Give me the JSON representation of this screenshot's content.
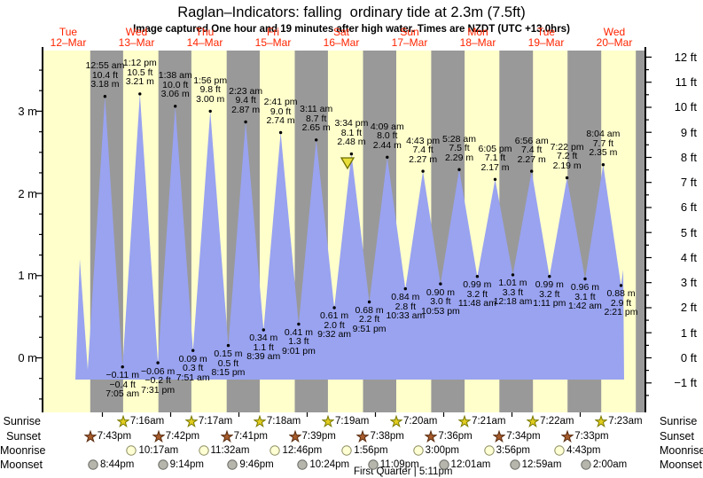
{
  "title": "Raglan–Indicators: falling  ordinary tide at 2.3m (7.5ft)",
  "subtitle": "Image captured One hour and 19 minutes after high water. Times are NZDT (UTC +13.0hrs)",
  "chart_data": {
    "type": "area",
    "title": "Raglan–Indicators: falling  ordinary tide at 2.3m (7.5ft)",
    "x_axis": {
      "days": [
        {
          "dow": "Tue",
          "date": "12–Mar"
        },
        {
          "dow": "Wed",
          "date": "13–Mar"
        },
        {
          "dow": "Thu",
          "date": "14–Mar"
        },
        {
          "dow": "Fri",
          "date": "15–Mar"
        },
        {
          "dow": "Sat",
          "date": "16–Mar"
        },
        {
          "dow": "Sun",
          "date": "17–Mar"
        },
        {
          "dow": "Mon",
          "date": "18–Mar"
        },
        {
          "dow": "Tue",
          "date": "19–Mar"
        },
        {
          "dow": "Wed",
          "date": "20–Mar"
        }
      ]
    },
    "y_axis_left": {
      "unit": "m",
      "ticks": [
        "0 m",
        "1 m",
        "2 m",
        "3 m"
      ],
      "minor_step_m": 0.25
    },
    "y_axis_right": {
      "unit": "ft",
      "ticks": [
        "−1 ft",
        "0 ft",
        "1 ft",
        "2 ft",
        "3 ft",
        "4 ft",
        "5 ft",
        "6 ft",
        "7 ft",
        "8 ft",
        "9 ft",
        "10 ft",
        "11 ft",
        "12 ft"
      ],
      "minor_step_ft": 0.5
    },
    "high_tides": [
      {
        "time": "12:55 am",
        "ft": "10.4 ft",
        "m": "3.18 m",
        "day": 1,
        "hour": 0.9167,
        "height_m": 3.18
      },
      {
        "time": "1:12 pm",
        "ft": "10.5 ft",
        "m": "3.21 m",
        "day": 1,
        "hour": 13.2,
        "height_m": 3.21
      },
      {
        "time": "1:38 am",
        "ft": "10.0 ft",
        "m": "3.06 m",
        "day": 2,
        "hour": 1.6333,
        "height_m": 3.06
      },
      {
        "time": "1:56 pm",
        "ft": "9.8 ft",
        "m": "3.00 m",
        "day": 2,
        "hour": 13.9333,
        "height_m": 3.0
      },
      {
        "time": "2:23 am",
        "ft": "9.4 ft",
        "m": "2.87 m",
        "day": 3,
        "hour": 2.3833,
        "height_m": 2.87
      },
      {
        "time": "2:41 pm",
        "ft": "9.0 ft",
        "m": "2.74 m",
        "day": 3,
        "hour": 14.6833,
        "height_m": 2.74
      },
      {
        "time": "3:11 am",
        "ft": "8.7 ft",
        "m": "2.65 m",
        "day": 4,
        "hour": 3.1833,
        "height_m": 2.65
      },
      {
        "time": "3:34 pm",
        "ft": "8.1 ft",
        "m": "2.48 m",
        "day": 4,
        "hour": 15.5667,
        "height_m": 2.48
      },
      {
        "time": "4:09 am",
        "ft": "8.0 ft",
        "m": "2.44 m",
        "day": 5,
        "hour": 4.15,
        "height_m": 2.44
      },
      {
        "time": "4:43 pm",
        "ft": "7.4 ft",
        "m": "2.27 m",
        "day": 5,
        "hour": 16.7167,
        "height_m": 2.27
      },
      {
        "time": "5:28 am",
        "ft": "7.5 ft",
        "m": "2.29 m",
        "day": 6,
        "hour": 5.4667,
        "height_m": 2.29
      },
      {
        "time": "6:05 pm",
        "ft": "7.1 ft",
        "m": "2.17 m",
        "day": 6,
        "hour": 18.0833,
        "height_m": 2.17
      },
      {
        "time": "6:56 am",
        "ft": "7.4 ft",
        "m": "2.27 m",
        "day": 7,
        "hour": 6.9333,
        "height_m": 2.27
      },
      {
        "time": "7:22 pm",
        "ft": "7.2 ft",
        "m": "2.19 m",
        "day": 7,
        "hour": 19.3667,
        "height_m": 2.19
      },
      {
        "time": "8:04 am",
        "ft": "7.7 ft",
        "m": "2.35 m",
        "day": 8,
        "hour": 8.0667,
        "height_m": 2.35
      }
    ],
    "low_tides": [
      {
        "m": "−0.11 m",
        "ft": "−0.4 ft",
        "time": "7:05 am",
        "day": 1,
        "hour": 7.0833,
        "height_m": -0.11
      },
      {
        "m": "−0.06 m",
        "ft": "−0.2 ft",
        "time": "7:31 pm",
        "day": 1,
        "hour": 19.5167,
        "height_m": -0.06
      },
      {
        "m": "0.09 m",
        "ft": "0.3 ft",
        "time": "7:51 am",
        "day": 2,
        "hour": 7.85,
        "height_m": 0.09
      },
      {
        "m": "0.15 m",
        "ft": "0.5 ft",
        "time": "8:15 pm",
        "day": 2,
        "hour": 20.25,
        "height_m": 0.15
      },
      {
        "m": "0.34 m",
        "ft": "1.1 ft",
        "time": "8:39 am",
        "day": 3,
        "hour": 8.65,
        "height_m": 0.34
      },
      {
        "m": "0.41 m",
        "ft": "1.3 ft",
        "time": "9:01 pm",
        "day": 3,
        "hour": 21.0167,
        "height_m": 0.41
      },
      {
        "m": "0.61 m",
        "ft": "2.0 ft",
        "time": "9:32 am",
        "day": 4,
        "hour": 9.5333,
        "height_m": 0.61
      },
      {
        "m": "0.68 m",
        "ft": "2.2 ft",
        "time": "9:51 pm",
        "day": 4,
        "hour": 21.85,
        "height_m": 0.68
      },
      {
        "m": "0.84 m",
        "ft": "2.8 ft",
        "time": "10:33 am",
        "day": 5,
        "hour": 10.55,
        "height_m": 0.84
      },
      {
        "m": "0.90 m",
        "ft": "3.0 ft",
        "time": "10:53 pm",
        "day": 5,
        "hour": 22.8833,
        "height_m": 0.9
      },
      {
        "m": "0.99 m",
        "ft": "3.2 ft",
        "time": "11:48 am",
        "day": 6,
        "hour": 11.8,
        "height_m": 0.99
      },
      {
        "m": "1.01 m",
        "ft": "3.3 ft",
        "time": "12:18 am",
        "day": 7,
        "hour": 0.3,
        "height_m": 1.01
      },
      {
        "m": "0.99 m",
        "ft": "3.2 ft",
        "time": "1:11 pm",
        "day": 7,
        "hour": 13.1833,
        "height_m": 0.99
      },
      {
        "m": "0.96 m",
        "ft": "3.1 ft",
        "time": "1:42 am",
        "day": 8,
        "hour": 1.7,
        "height_m": 0.96
      },
      {
        "m": "0.88 m",
        "ft": "2.9 ft",
        "time": "2:21 pm",
        "day": 8,
        "hour": 14.35,
        "height_m": 0.88
      }
    ],
    "current_tide": {
      "height_label": "2.3m (7.5ft)",
      "state": "falling",
      "marker": "yellow-triangle"
    },
    "colors": {
      "day_band": "#ffffcc",
      "night_band": "#999999",
      "tide_area": "#99a3f0",
      "day_label": "#ff2400",
      "marker_fill": "#e8df3a",
      "marker_stroke": "#6e6e00",
      "sunrise_star": "#e2cd20",
      "sunset_star": "#a85c2c",
      "moonrise_circle": "#ffffd4",
      "moonset_circle": "#b6b6ac"
    }
  },
  "almanac": {
    "rows": [
      {
        "key": "sunrise",
        "label": "Sunrise",
        "icon": "sunrise-star-icon",
        "entries": [
          {
            "time": "7:16am",
            "day": 1,
            "hour": 7.2667
          },
          {
            "time": "7:17am",
            "day": 2,
            "hour": 7.2833
          },
          {
            "time": "7:18am",
            "day": 3,
            "hour": 7.3
          },
          {
            "time": "7:19am",
            "day": 4,
            "hour": 7.3167
          },
          {
            "time": "7:20am",
            "day": 5,
            "hour": 7.3333
          },
          {
            "time": "7:21am",
            "day": 6,
            "hour": 7.35
          },
          {
            "time": "7:22am",
            "day": 7,
            "hour": 7.3667
          },
          {
            "time": "7:23am",
            "day": 8,
            "hour": 7.3833
          }
        ]
      },
      {
        "key": "sunset",
        "label": "Sunset",
        "icon": "sunset-star-icon",
        "entries": [
          {
            "time": "7:43pm",
            "day": 0,
            "hour": 19.7167
          },
          {
            "time": "7:42pm",
            "day": 1,
            "hour": 19.7
          },
          {
            "time": "7:41pm",
            "day": 2,
            "hour": 19.6833
          },
          {
            "time": "7:39pm",
            "day": 3,
            "hour": 19.65
          },
          {
            "time": "7:38pm",
            "day": 4,
            "hour": 19.6333
          },
          {
            "time": "7:36pm",
            "day": 5,
            "hour": 19.6
          },
          {
            "time": "7:34pm",
            "day": 6,
            "hour": 19.5667
          },
          {
            "time": "7:33pm",
            "day": 7,
            "hour": 19.55
          }
        ]
      },
      {
        "key": "moonrise",
        "label": "Moonrise",
        "icon": "moonrise-circle-icon",
        "entries": [
          {
            "time": "10:17am",
            "day": 1,
            "hour": 10.2833
          },
          {
            "time": "11:32am",
            "day": 2,
            "hour": 11.5333
          },
          {
            "time": "12:46pm",
            "day": 3,
            "hour": 12.7667
          },
          {
            "time": "1:56pm",
            "day": 4,
            "hour": 13.9333
          },
          {
            "time": "3:00pm",
            "day": 5,
            "hour": 15.0
          },
          {
            "time": "3:56pm",
            "day": 6,
            "hour": 15.9333
          },
          {
            "time": "4:43pm",
            "day": 7,
            "hour": 16.7167
          }
        ]
      },
      {
        "key": "moonset",
        "label": "Moonset",
        "icon": "moonset-circle-icon",
        "entries": [
          {
            "time": "8:44pm",
            "day": 0,
            "hour": 20.7333
          },
          {
            "time": "9:14pm",
            "day": 1,
            "hour": 21.2333
          },
          {
            "time": "9:46pm",
            "day": 2,
            "hour": 21.7667
          },
          {
            "time": "10:24pm",
            "day": 3,
            "hour": 22.4
          },
          {
            "time": "11:09pm",
            "day": 4,
            "hour": 23.15
          },
          {
            "time": "12:01am",
            "day": 6,
            "hour": 0.0167
          },
          {
            "time": "12:59am",
            "day": 7,
            "hour": 0.9833
          },
          {
            "time": "2:00am",
            "day": 8,
            "hour": 2.0
          }
        ]
      }
    ],
    "moon_phase": "First Quarter | 5:11pm"
  }
}
